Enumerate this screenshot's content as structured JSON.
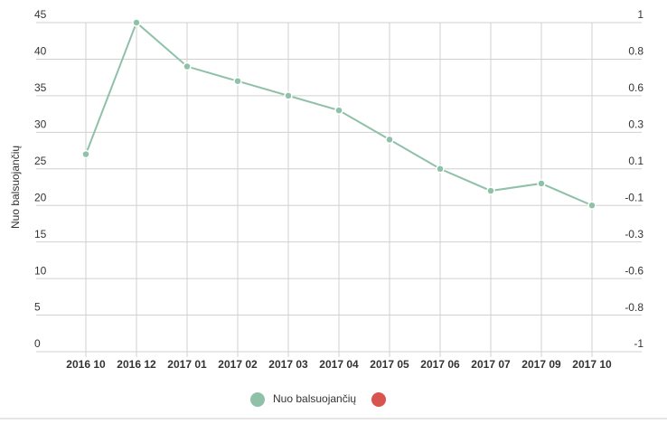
{
  "chart_data": {
    "type": "line",
    "y_label": "Nuo balsuojančių",
    "categories": [
      "2016 10",
      "2016 12",
      "2017 01",
      "2017 02",
      "2017 03",
      "2017 04",
      "2017 05",
      "2017 06",
      "2017 07",
      "2017 09",
      "2017 10"
    ],
    "series": [
      {
        "name": "Nuo balsuojančių",
        "color": "#8fc1a9",
        "values": [
          27,
          45,
          39,
          37,
          35,
          33,
          29,
          25,
          22,
          23,
          20
        ]
      }
    ],
    "ylim": [
      0,
      45
    ],
    "yticks": [
      0,
      5,
      10,
      15,
      20,
      25,
      30,
      35,
      40,
      45
    ],
    "y2lim": [
      -1,
      1
    ],
    "y2ticks": [
      {
        "value": -1,
        "label": "-1"
      },
      {
        "value": -0.778,
        "label": "-0.8"
      },
      {
        "value": -0.556,
        "label": "-0.6"
      },
      {
        "value": -0.333,
        "label": "-0.3"
      },
      {
        "value": -0.111,
        "label": "-0.1"
      },
      {
        "value": 0.111,
        "label": "0.1"
      },
      {
        "value": 0.333,
        "label": "0.3"
      },
      {
        "value": 0.556,
        "label": "0.6"
      },
      {
        "value": 0.778,
        "label": "0.8"
      },
      {
        "value": 1,
        "label": "1"
      }
    ],
    "grid": true
  }
}
